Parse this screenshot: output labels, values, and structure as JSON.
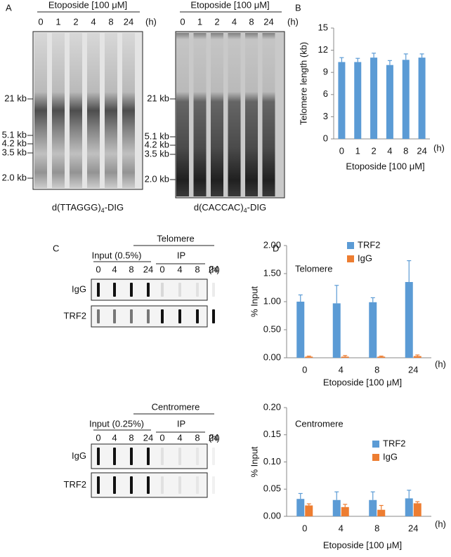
{
  "figure": {
    "panel_a": {
      "label": "A",
      "gels": [
        {
          "treatment": "Etoposide [100 μM]",
          "lanes": [
            "0",
            "1",
            "2",
            "4",
            "8",
            "24"
          ],
          "unit": "(h)",
          "markers": [
            "21 kb",
            "5.1 kb",
            "4.2 kb",
            "3.5 kb",
            "2.0 kb"
          ],
          "probe": {
            "main": "d(TTAGGG)",
            "sub": "4",
            "suffix": "-DIG"
          }
        },
        {
          "treatment": "Etoposide [100 μM]",
          "lanes": [
            "0",
            "1",
            "2",
            "4",
            "8",
            "24"
          ],
          "unit": "(h)",
          "markers": [
            "21 kb",
            "5.1 kb",
            "4.2 kb",
            "3.5 kb",
            "2.0 kb"
          ],
          "probe": {
            "main": "d(CACCAC)",
            "sub": "4",
            "suffix": "-DIG"
          }
        }
      ]
    },
    "panel_b": {
      "label": "B"
    },
    "panel_c": {
      "label": "C",
      "blocks": [
        {
          "target": "Telomere",
          "input": "Input (0.5%)",
          "ip": "IP",
          "lanes": [
            "0",
            "4",
            "8",
            "24",
            "0",
            "4",
            "8",
            "24"
          ],
          "unit": "(h)",
          "rows": [
            "IgG",
            "TRF2"
          ]
        },
        {
          "target": "Centromere",
          "input": "Input (0.25%)",
          "ip": "IP",
          "lanes": [
            "0",
            "4",
            "8",
            "24",
            "0",
            "4",
            "8",
            "24"
          ],
          "unit": "(h)",
          "rows": [
            "IgG",
            "TRF2"
          ]
        }
      ]
    },
    "panel_d": {
      "label": "D"
    }
  },
  "chart_data": [
    {
      "type": "bar",
      "ylabel": "Telomere length (kb)",
      "xlabel": "Etoposide [100 μM]",
      "x_unit": "(h)",
      "categories": [
        "0",
        "1",
        "2",
        "4",
        "8",
        "24"
      ],
      "values": [
        10.4,
        10.4,
        11.0,
        10.0,
        10.7,
        11.0
      ],
      "errors": [
        0.6,
        0.5,
        0.6,
        0.6,
        0.8,
        0.5
      ],
      "color": "#5b9bd5",
      "ylim": [
        0,
        15
      ],
      "yticks": [
        0,
        3,
        6,
        9,
        12,
        15
      ]
    },
    {
      "type": "bar",
      "title": "Telomere",
      "ylabel": "% Input",
      "xlabel": "Etoposide [100 μM]",
      "x_unit": "(h)",
      "categories": [
        "0",
        "4",
        "8",
        "24"
      ],
      "series": [
        {
          "name": "TRF2",
          "color": "#5b9bd5",
          "values": [
            1.0,
            0.97,
            0.99,
            1.35
          ],
          "errors": [
            0.12,
            0.32,
            0.08,
            0.38
          ]
        },
        {
          "name": "IgG",
          "color": "#ed7d31",
          "values": [
            0.02,
            0.02,
            0.02,
            0.03
          ],
          "errors": [
            0.01,
            0.02,
            0.01,
            0.02
          ]
        }
      ],
      "ylim": [
        0,
        2
      ],
      "yticks": [
        {
          "value": 0,
          "label": "0.00"
        },
        {
          "value": 0.5,
          "label": "0.50"
        },
        {
          "value": 1,
          "label": "1.00"
        },
        {
          "value": 1.5,
          "label": "1.50"
        },
        {
          "value": 2,
          "label": "2.00"
        }
      ]
    },
    {
      "type": "bar",
      "title": "Centromere",
      "ylabel": "% Input",
      "xlabel": "Etoposide [100 μM]",
      "x_unit": "(h)",
      "categories": [
        "0",
        "4",
        "8",
        "24"
      ],
      "series": [
        {
          "name": "TRF2",
          "color": "#5b9bd5",
          "values": [
            0.032,
            0.03,
            0.03,
            0.033
          ],
          "errors": [
            0.01,
            0.015,
            0.015,
            0.015
          ]
        },
        {
          "name": "IgG",
          "color": "#ed7d31",
          "values": [
            0.02,
            0.017,
            0.012,
            0.024
          ],
          "errors": [
            0.003,
            0.005,
            0.008,
            0.003
          ]
        }
      ],
      "ylim": [
        0,
        0.2
      ],
      "yticks": [
        {
          "value": 0,
          "label": "0.00"
        },
        {
          "value": 0.05,
          "label": "0.05"
        },
        {
          "value": 0.1,
          "label": "0.10"
        },
        {
          "value": 0.15,
          "label": "0.15"
        },
        {
          "value": 0.2,
          "label": "0.20"
        }
      ]
    }
  ]
}
